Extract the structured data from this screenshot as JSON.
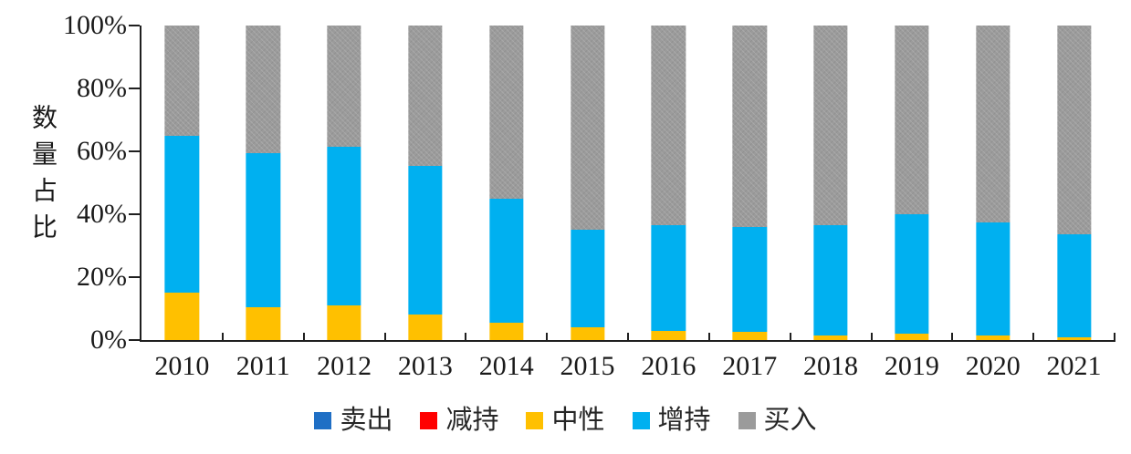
{
  "chart_data": {
    "type": "bar",
    "stacked": true,
    "percent": true,
    "title": "",
    "xlabel": "",
    "ylabel": "数量占比",
    "ylim": [
      0,
      100
    ],
    "yticks": [
      "0%",
      "20%",
      "40%",
      "60%",
      "80%",
      "100%"
    ],
    "grid": false,
    "legend_position": "bottom",
    "categories": [
      "2010",
      "2011",
      "2012",
      "2013",
      "2014",
      "2015",
      "2016",
      "2017",
      "2018",
      "2019",
      "2020",
      "2021"
    ],
    "series": [
      {
        "name": "卖出",
        "color": "#1F6FC5",
        "values": [
          0,
          0,
          0,
          0,
          0,
          0,
          0,
          0,
          0,
          0,
          0,
          0
        ]
      },
      {
        "name": "减持",
        "color": "#FF0000",
        "values": [
          0,
          0,
          0,
          0,
          0,
          0,
          0,
          0,
          0,
          0,
          0,
          0
        ]
      },
      {
        "name": "中性",
        "color": "#FFC000",
        "values": [
          15,
          10.5,
          11,
          8,
          5.5,
          4,
          3,
          2.5,
          1.5,
          2,
          1.5,
          1
        ]
      },
      {
        "name": "增持",
        "color": "#00B0F0",
        "values": [
          50,
          49,
          50.5,
          47.5,
          39.5,
          31,
          33.5,
          33.5,
          35,
          38,
          36,
          32.5
        ]
      },
      {
        "name": "买入",
        "color": "#9B9B9B",
        "pattern": "texture",
        "values": [
          35,
          40.5,
          38.5,
          44.5,
          55,
          65,
          63.5,
          64,
          63.5,
          60,
          62.5,
          66.5
        ]
      }
    ],
    "axis_color": "#1f1f1f"
  }
}
